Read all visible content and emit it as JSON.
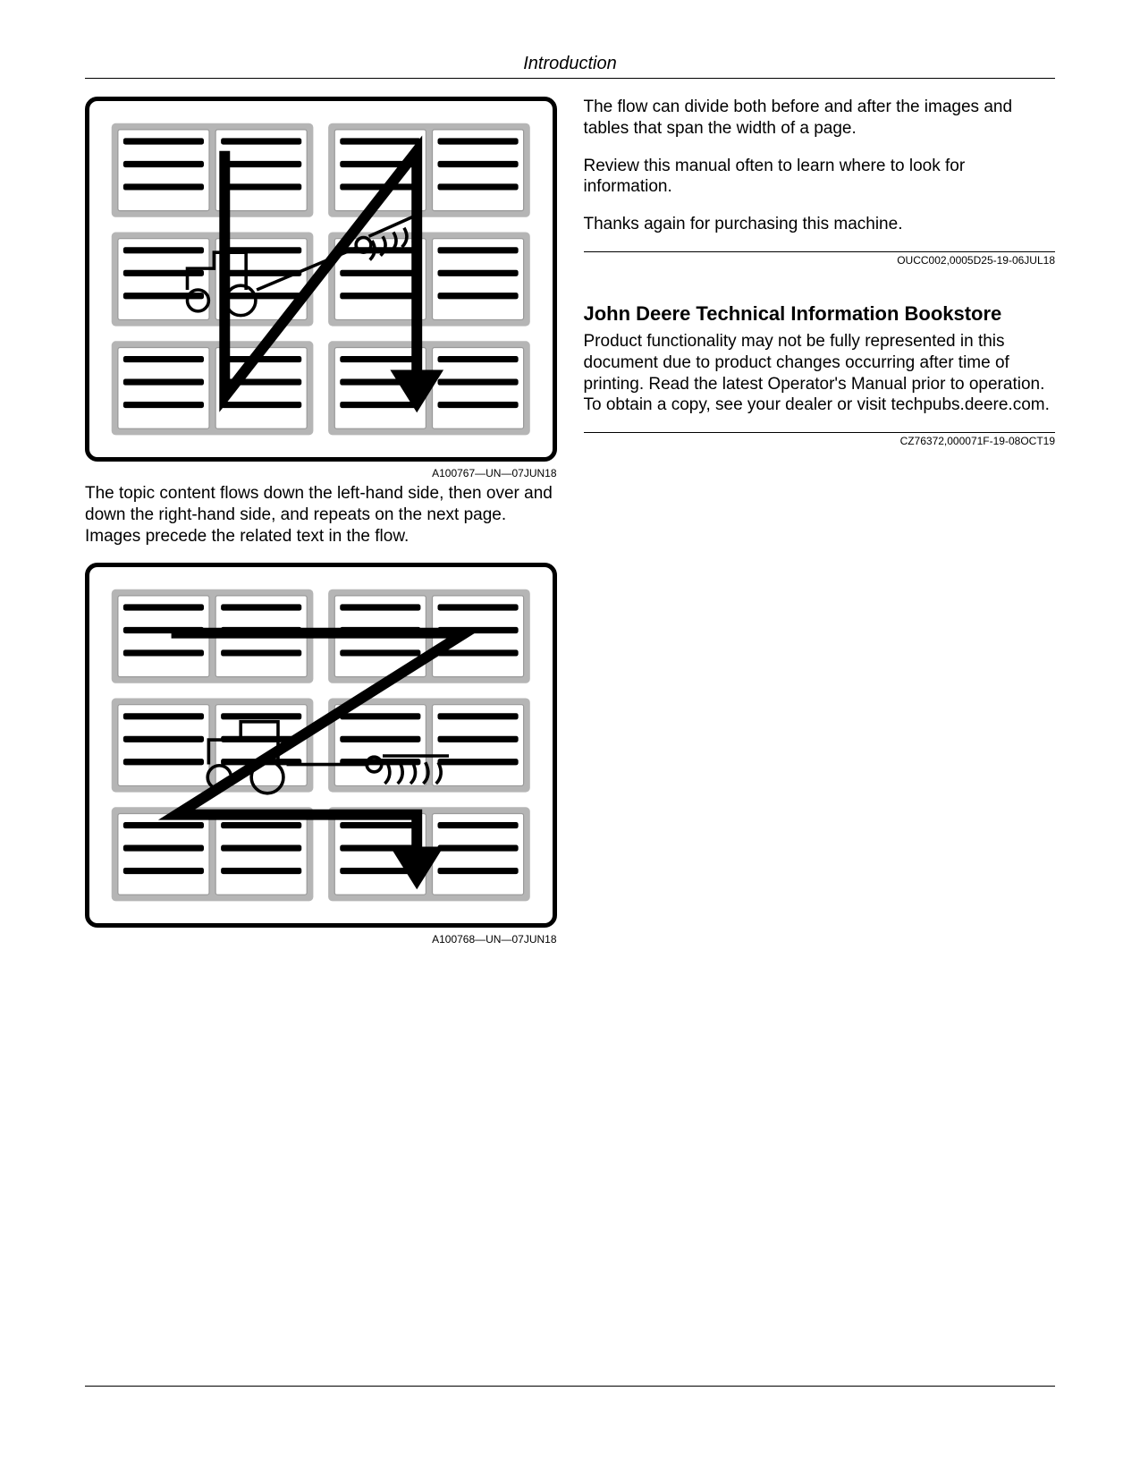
{
  "header": {
    "title": "Introduction"
  },
  "left_column": {
    "figure1": {
      "caption": "A100767—UN—07JUN18",
      "diagram": {
        "type": "flowchart",
        "layout": "2x3-grid-of-text-panels",
        "panel_count": 6,
        "panel_columns": 2,
        "panel_rows": 3,
        "panel_bg": "#b5b5b5",
        "panel_inner_bg": "#ffffff",
        "bar_color": "#000000",
        "arrow_path_style": "N-shape",
        "arrow_description": "down left column, diagonal up-right, down right column",
        "arrow_color": "#000000",
        "arrow_stroke_width": 10,
        "tractor_icon": true,
        "tractor_position": "center-left",
        "border_radius": 12,
        "border_color": "#000000",
        "border_width": 5
      }
    },
    "paragraph1": "The topic content flows down the left-hand side, then over and down the right-hand side, and repeats on the next page. Images precede the related text in the flow.",
    "figure2": {
      "caption": "A100768—UN—07JUN18",
      "diagram": {
        "type": "flowchart",
        "layout": "2x3-grid-of-text-panels",
        "panel_count": 6,
        "panel_columns": 2,
        "panel_rows": 3,
        "panel_bg": "#b5b5b5",
        "panel_inner_bg": "#ffffff",
        "bar_color": "#000000",
        "arrow_path_style": "Z-shape",
        "arrow_description": "right across top, diagonal down-left, right across bottom then down",
        "arrow_color": "#000000",
        "arrow_stroke_width": 10,
        "tractor_icon": true,
        "tractor_position": "center-wide",
        "border_radius": 12,
        "border_color": "#000000",
        "border_width": 5
      }
    }
  },
  "right_column": {
    "paragraph1": "The flow can divide both before and after the images and tables that span the width of a page.",
    "paragraph2": "Review this manual often to learn where to look for information.",
    "paragraph3": "Thanks again for purchasing this machine.",
    "ref1": "OUCC002,0005D25-19-06JUL18",
    "section_title": "John Deere Technical Information Bookstore",
    "paragraph4": "Product functionality may not be fully represented in this document due to product changes occurring after time of printing. Read the latest Operator's Manual prior to operation. To obtain a copy, see your dealer or visit techpubs.deere.com.",
    "ref2": "CZ76372,000071F-19-08OCT19"
  }
}
